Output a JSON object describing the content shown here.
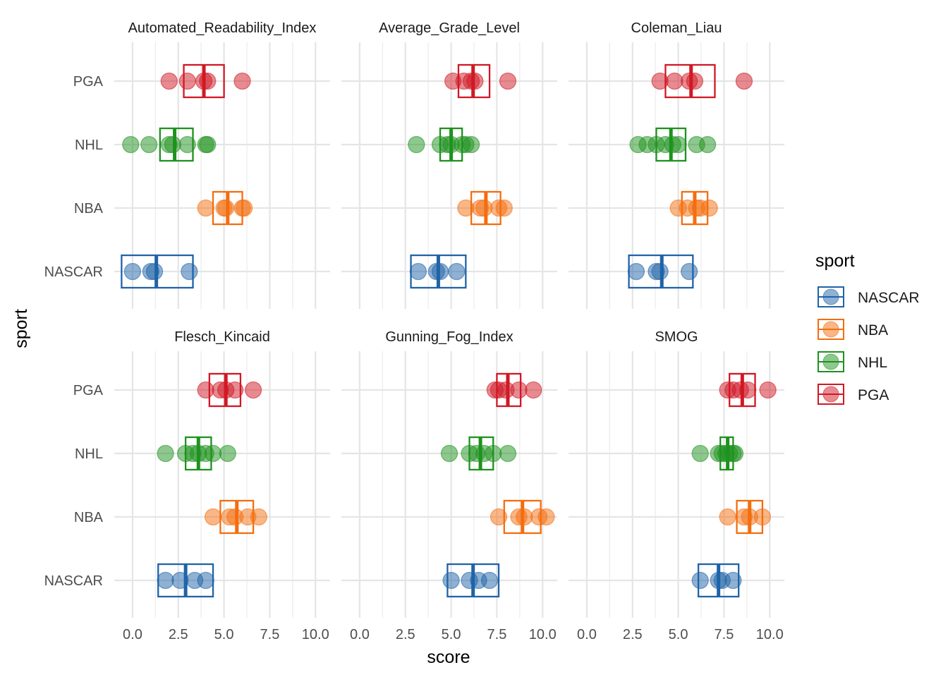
{
  "chart_data": {
    "type": "scatter",
    "subtype": "faceted crossbar with jittered points",
    "xlabel": "score",
    "ylabel": "sport",
    "xlim": [
      -1.0,
      10.8
    ],
    "x_ticks": [
      "0.0",
      "2.5",
      "5.0",
      "7.5",
      "10.0"
    ],
    "x_tick_values": [
      0,
      2.5,
      5,
      7.5,
      10
    ],
    "categories": [
      "NASCAR",
      "NBA",
      "NHL",
      "PGA"
    ],
    "grid": true,
    "legend": {
      "title": "sport",
      "placement": "right"
    },
    "colors": {
      "NASCAR": "#1f63a8",
      "NBA": "#f46d0e",
      "NHL": "#1e921e",
      "PGA": "#d01824"
    },
    "facets": [
      {
        "name": "Automated_Readability_Index",
        "series": [
          {
            "name": "NASCAR",
            "points": [
              0.0,
              1.0,
              1.2,
              3.1
            ],
            "box": [
              -0.6,
              1.3,
              3.3
            ]
          },
          {
            "name": "NBA",
            "points": [
              4.0,
              5.0,
              5.1,
              6.0,
              6.1
            ],
            "box": [
              4.4,
              5.2,
              6.0
            ]
          },
          {
            "name": "NHL",
            "points": [
              -0.1,
              0.9,
              2.0,
              2.2,
              3.0,
              4.0,
              4.1
            ],
            "box": [
              1.5,
              2.3,
              3.3
            ]
          },
          {
            "name": "PGA",
            "points": [
              2.0,
              3.0,
              3.9,
              4.1,
              6.0
            ],
            "box": [
              2.8,
              3.9,
              5.0
            ]
          }
        ]
      },
      {
        "name": "Average_Grade_Level",
        "series": [
          {
            "name": "NASCAR",
            "points": [
              3.2,
              4.2,
              4.4,
              5.3
            ],
            "box": [
              2.8,
              4.3,
              5.8
            ]
          },
          {
            "name": "NBA",
            "points": [
              5.8,
              6.6,
              6.8,
              7.6,
              7.9
            ],
            "box": [
              6.1,
              6.9,
              7.7
            ]
          },
          {
            "name": "NHL",
            "points": [
              3.1,
              4.4,
              4.8,
              5.0,
              5.6,
              5.8,
              6.1
            ],
            "box": [
              4.4,
              5.0,
              5.6
            ]
          },
          {
            "name": "PGA",
            "points": [
              5.1,
              5.7,
              6.1,
              6.3,
              8.1
            ],
            "box": [
              5.4,
              6.2,
              7.1
            ]
          }
        ]
      },
      {
        "name": "Coleman_Liau",
        "series": [
          {
            "name": "NASCAR",
            "points": [
              2.7,
              3.8,
              4.0,
              5.6
            ],
            "box": [
              2.3,
              4.1,
              5.8
            ]
          },
          {
            "name": "NBA",
            "points": [
              5.0,
              5.5,
              6.0,
              6.2,
              6.7
            ],
            "box": [
              5.2,
              5.9,
              6.6
            ]
          },
          {
            "name": "NHL",
            "points": [
              2.8,
              3.3,
              3.8,
              4.3,
              4.7,
              5.0,
              6.0,
              6.6
            ],
            "box": [
              3.8,
              4.6,
              5.4
            ]
          },
          {
            "name": "PGA",
            "points": [
              4.0,
              4.8,
              5.6,
              5.9,
              8.6
            ],
            "box": [
              4.3,
              5.7,
              7.0
            ]
          }
        ]
      },
      {
        "name": "Flesch_Kincaid",
        "series": [
          {
            "name": "NASCAR",
            "points": [
              1.8,
              2.6,
              3.4,
              4.0
            ],
            "box": [
              1.4,
              2.9,
              4.4
            ]
          },
          {
            "name": "NBA",
            "points": [
              4.4,
              5.3,
              5.6,
              6.3,
              6.9
            ],
            "box": [
              4.8,
              5.7,
              6.6
            ]
          },
          {
            "name": "NHL",
            "points": [
              1.8,
              2.9,
              3.3,
              3.6,
              4.0,
              4.4,
              5.2
            ],
            "box": [
              2.9,
              3.6,
              4.3
            ]
          },
          {
            "name": "PGA",
            "points": [
              4.0,
              4.8,
              5.1,
              5.6,
              6.6
            ],
            "box": [
              4.2,
              5.1,
              5.9
            ]
          }
        ]
      },
      {
        "name": "Gunning_Fog_Index",
        "series": [
          {
            "name": "NASCAR",
            "points": [
              5.0,
              6.0,
              6.5,
              7.1
            ],
            "box": [
              4.8,
              6.2,
              7.6
            ]
          },
          {
            "name": "NBA",
            "points": [
              7.6,
              8.7,
              9.0,
              9.8,
              10.2
            ],
            "box": [
              7.9,
              8.9,
              9.9
            ]
          },
          {
            "name": "NHL",
            "points": [
              4.9,
              6.0,
              6.4,
              6.8,
              7.3,
              8.1
            ],
            "box": [
              6.0,
              6.6,
              7.3
            ]
          },
          {
            "name": "PGA",
            "points": [
              7.4,
              7.6,
              8.0,
              8.7,
              9.5
            ],
            "box": [
              7.5,
              8.1,
              8.8
            ]
          }
        ]
      },
      {
        "name": "SMOG",
        "series": [
          {
            "name": "NASCAR",
            "points": [
              6.2,
              7.2,
              7.4,
              8.0
            ],
            "box": [
              6.1,
              7.2,
              8.3
            ]
          },
          {
            "name": "NBA",
            "points": [
              7.7,
              8.6,
              8.9,
              9.6
            ],
            "box": [
              8.2,
              8.9,
              9.6
            ]
          },
          {
            "name": "NHL",
            "points": [
              6.2,
              7.2,
              7.4,
              7.6,
              7.8,
              8.0,
              8.1
            ],
            "box": [
              7.3,
              7.7,
              8.0
            ]
          },
          {
            "name": "PGA",
            "points": [
              7.7,
              8.0,
              8.4,
              8.8,
              9.9
            ],
            "box": [
              7.8,
              8.5,
              9.2
            ]
          }
        ]
      }
    ]
  }
}
